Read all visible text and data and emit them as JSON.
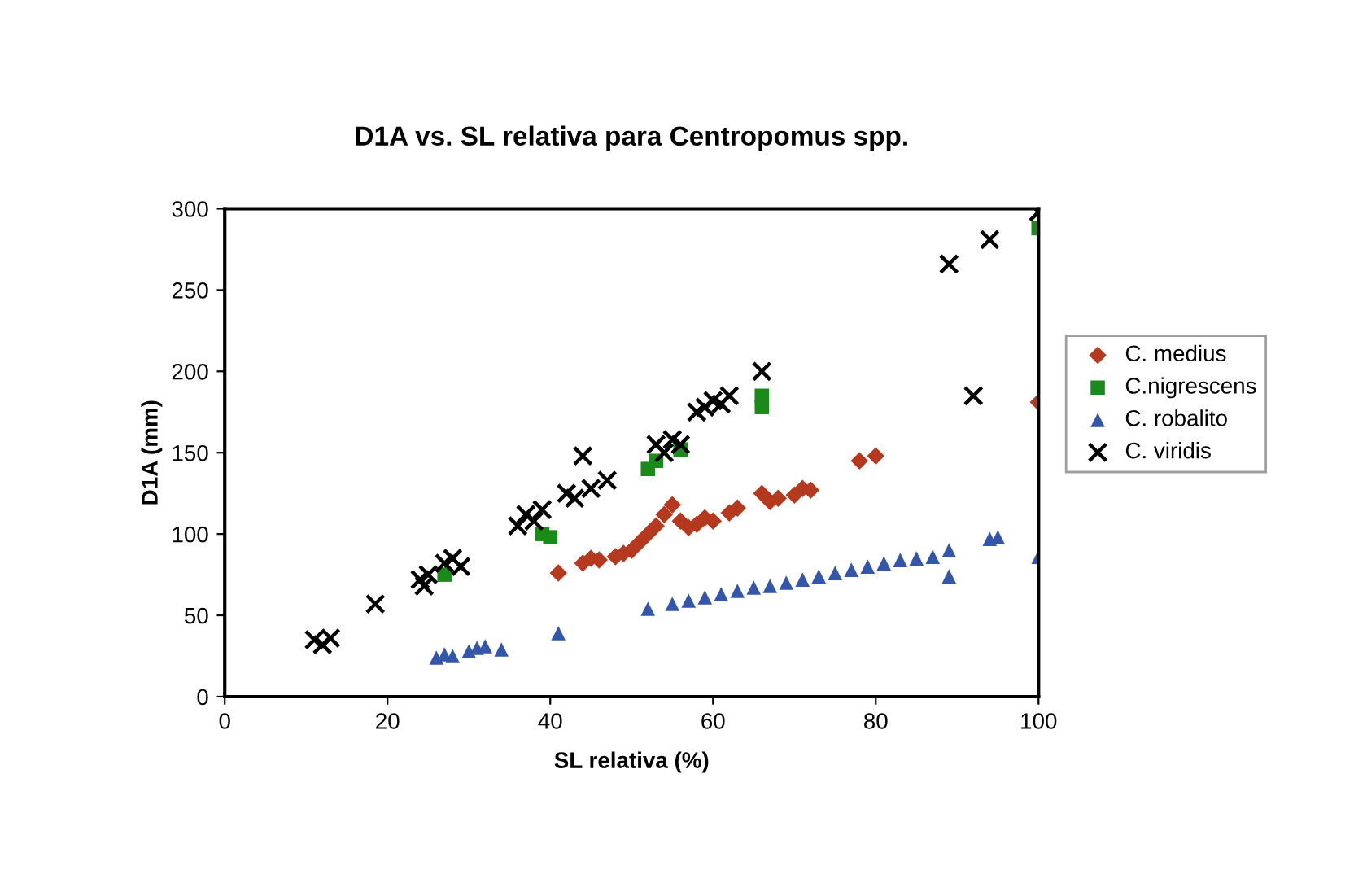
{
  "chart_data": {
    "type": "scatter",
    "title": "D1A vs. SL relativa para Centropomus spp.",
    "xlabel": "SL relativa (%)",
    "ylabel": "D1A (mm)",
    "xlim": [
      0,
      100
    ],
    "ylim": [
      0,
      300
    ],
    "xticks": [
      0,
      20,
      40,
      60,
      80,
      100
    ],
    "yticks": [
      0,
      50,
      100,
      150,
      200,
      250,
      300
    ],
    "grid": false,
    "legend": "right",
    "series": [
      {
        "name": "C. medius",
        "color": "#b5391f",
        "marker": "diamond",
        "x": [
          41,
          44,
          45,
          46,
          48,
          49,
          50,
          51,
          52,
          53,
          54,
          55,
          56,
          57,
          58,
          59,
          60,
          62,
          63,
          66,
          67,
          68,
          70,
          71,
          72,
          78,
          80,
          100
        ],
        "values": [
          76,
          82,
          85,
          84,
          86,
          88,
          90,
          95,
          100,
          105,
          112,
          118,
          108,
          104,
          106,
          110,
          108,
          113,
          116,
          125,
          120,
          122,
          124,
          128,
          127,
          145,
          148,
          181
        ]
      },
      {
        "name": "C.nigrescens",
        "color": "#1a8a1a",
        "marker": "square",
        "x": [
          27,
          39,
          40,
          52,
          53,
          56,
          66,
          66,
          100
        ],
        "values": [
          75,
          100,
          98,
          140,
          145,
          152,
          185,
          178,
          288
        ]
      },
      {
        "name": "C. robalito",
        "color": "#3355aa",
        "marker": "triangle",
        "x": [
          26,
          27,
          28,
          30,
          31,
          32,
          34,
          41,
          52,
          55,
          57,
          59,
          61,
          63,
          65,
          67,
          69,
          71,
          73,
          75,
          77,
          79,
          81,
          83,
          85,
          87,
          89,
          89,
          94,
          95,
          100
        ],
        "values": [
          24,
          26,
          25,
          28,
          30,
          31,
          29,
          39,
          54,
          57,
          59,
          61,
          63,
          65,
          67,
          68,
          70,
          72,
          74,
          76,
          78,
          80,
          82,
          84,
          85,
          86,
          90,
          74,
          97,
          98,
          86
        ]
      },
      {
        "name": "C. viridis",
        "color": "#000000",
        "marker": "cross",
        "x": [
          11,
          12,
          13,
          18.5,
          24,
          24.5,
          25,
          27,
          28,
          29,
          36,
          37,
          38,
          39,
          42,
          43,
          44,
          45,
          47,
          53,
          54,
          55,
          56,
          58,
          59,
          60,
          61,
          62,
          66,
          89,
          92,
          94,
          100
        ],
        "values": [
          35,
          32,
          36,
          57,
          72,
          68,
          75,
          82,
          85,
          80,
          105,
          112,
          108,
          115,
          125,
          122,
          148,
          128,
          133,
          155,
          150,
          158,
          155,
          175,
          178,
          182,
          180,
          185,
          200,
          266,
          185,
          281,
          298
        ]
      }
    ]
  }
}
